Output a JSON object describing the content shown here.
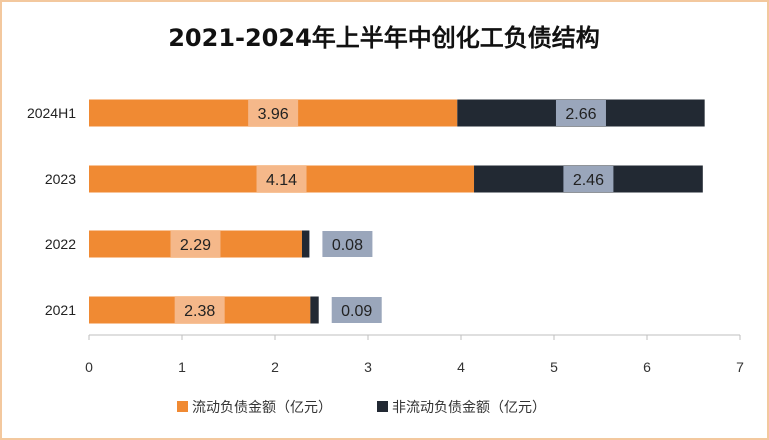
{
  "chart_data": {
    "type": "bar",
    "orientation": "horizontal",
    "stacked": true,
    "title": "2021-2024年上半年中创化工负债结构",
    "categories": [
      "2024H1",
      "2023",
      "2022",
      "2021"
    ],
    "series": [
      {
        "name": "流动负债金额（亿元）",
        "values": [
          3.96,
          4.14,
          2.29,
          2.38
        ],
        "labels": [
          "3.96",
          "4.14",
          "2.29",
          "2.38"
        ]
      },
      {
        "name": "非流动负债金额（亿元）",
        "values": [
          2.66,
          2.46,
          0.08,
          0.09
        ],
        "labels": [
          "2.66",
          "2.46",
          "0.08",
          "0.09"
        ]
      }
    ],
    "xticks": [
      "0",
      "1",
      "2",
      "3",
      "4",
      "5",
      "6",
      "7"
    ],
    "xlim": [
      0,
      7
    ],
    "xlabel": "",
    "ylabel": "",
    "grid": false,
    "legend_position": "bottom",
    "colors": {
      "current": "#f08a33",
      "noncurrent": "#222933",
      "current_label_bg": "#f5b88a",
      "noncurrent_label_bg": "#9aa6bb",
      "axis": "#bfbfbf",
      "border": "#f3c89e"
    }
  }
}
